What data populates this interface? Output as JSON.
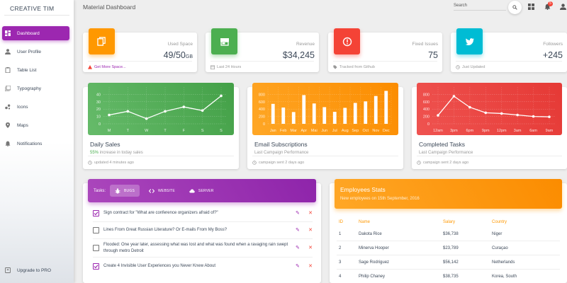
{
  "brand": "CREATIVE TIM",
  "sidebar": {
    "items": [
      {
        "label": "Dashboard",
        "icon": "dashboard-icon",
        "active": true
      },
      {
        "label": "User Profile",
        "icon": "person-icon"
      },
      {
        "label": "Table List",
        "icon": "clipboard-icon"
      },
      {
        "label": "Typography",
        "icon": "library-books-icon"
      },
      {
        "label": "Icons",
        "icon": "bubble-chart-icon"
      },
      {
        "label": "Maps",
        "icon": "location-pin-icon"
      },
      {
        "label": "Notifications",
        "icon": "bell-icon"
      }
    ],
    "upgrade": "Upgrade to PRO"
  },
  "topbar": {
    "title": "Material Dashboard",
    "search_placeholder": "Search",
    "notification_count": "5"
  },
  "stats": [
    {
      "category": "Used Space",
      "value": "49/50",
      "unit": "GB",
      "footer": "Get More Space...",
      "footer_icon": "warning-icon",
      "color": "#ff9800",
      "icon": "content-copy-icon",
      "footer_warning": true
    },
    {
      "category": "Revenue",
      "value": "$34,245",
      "unit": "",
      "footer": "Last 24 Hours",
      "footer_icon": "calendar-icon",
      "color": "#4caf50",
      "icon": "store-icon"
    },
    {
      "category": "Fixed Issues",
      "value": "75",
      "unit": "",
      "footer": "Tracked from Github",
      "footer_icon": "tag-icon",
      "color": "#f44336",
      "icon": "info-outline-icon"
    },
    {
      "category": "Followers",
      "value": "+245",
      "unit": "",
      "footer": "Just Updated",
      "footer_icon": "update-icon",
      "color": "#00bcd4",
      "icon": "twitter-icon"
    }
  ],
  "charts": [
    {
      "title": "Daily Sales",
      "subtitle_pct": "55%",
      "subtitle": " increase in today sales",
      "footer": "updated 4 minutes ago",
      "color": "#4caf50"
    },
    {
      "title": "Email Subscriptions",
      "subtitle": "Last Campaign Performance",
      "footer": "campaign sent 2 days ago",
      "color": "#ff9800"
    },
    {
      "title": "Completed Tasks",
      "subtitle": "Last Campaign Performance",
      "footer": "campaign sent 2 days ago",
      "color": "#f44336"
    }
  ],
  "chart_data": [
    {
      "type": "line",
      "categories": [
        "M",
        "T",
        "W",
        "T",
        "F",
        "S",
        "S"
      ],
      "values": [
        12,
        17,
        7,
        17,
        23,
        18,
        38
      ],
      "yticks": [
        0,
        10,
        20,
        30,
        40
      ],
      "ylim": [
        0,
        50
      ],
      "grid": true
    },
    {
      "type": "bar",
      "categories": [
        "Jan",
        "Feb",
        "Mar",
        "Apr",
        "Mai",
        "Jun",
        "Jul",
        "Aug",
        "Sep",
        "Oct",
        "Nov",
        "Dec"
      ],
      "values": [
        542,
        443,
        320,
        780,
        553,
        453,
        326,
        434,
        568,
        610,
        756,
        895
      ],
      "yticks": [
        0,
        200,
        400,
        600,
        800
      ],
      "ylim": [
        0,
        1000
      ],
      "grid": true
    },
    {
      "type": "line",
      "categories": [
        "12am",
        "3pm",
        "6pm",
        "9pm",
        "12pm",
        "3am",
        "6am",
        "9am"
      ],
      "values": [
        230,
        750,
        450,
        300,
        280,
        240,
        200,
        190
      ],
      "yticks": [
        0,
        200,
        400,
        600,
        800
      ],
      "ylim": [
        0,
        1000
      ],
      "grid": true
    }
  ],
  "tasks": {
    "label": "Tasks:",
    "tabs": [
      {
        "label": "BUGS",
        "icon": "bug-icon",
        "active": true
      },
      {
        "label": "WEBSITE",
        "icon": "code-icon"
      },
      {
        "label": "SERVER",
        "icon": "cloud-icon"
      }
    ],
    "items": [
      {
        "text": "Sign contract for \"What are conference organizers afraid of?\"",
        "checked": true
      },
      {
        "text": "Lines From Great Russian Literature? Or E-mails From My Boss?",
        "checked": false
      },
      {
        "text": "Flooded: One year later, assessing what was lost and what was found when a ravaging rain swept through metro Detroit",
        "checked": false
      },
      {
        "text": "Create 4 Invisible User Experiences you Never Knew About",
        "checked": true
      }
    ]
  },
  "employees": {
    "title": "Employees Stats",
    "subtitle": "New employees on 15th September, 2016",
    "columns": [
      "ID",
      "Name",
      "Salary",
      "Country"
    ],
    "rows": [
      [
        "1",
        "Dakota Rice",
        "$36,738",
        "Niger"
      ],
      [
        "2",
        "Minerva Hooper",
        "$23,789",
        "Curaçao"
      ],
      [
        "3",
        "Sage Rodriguez",
        "$56,142",
        "Netherlands"
      ],
      [
        "4",
        "Philip Chaney",
        "$38,735",
        "Korea, South"
      ]
    ]
  }
}
